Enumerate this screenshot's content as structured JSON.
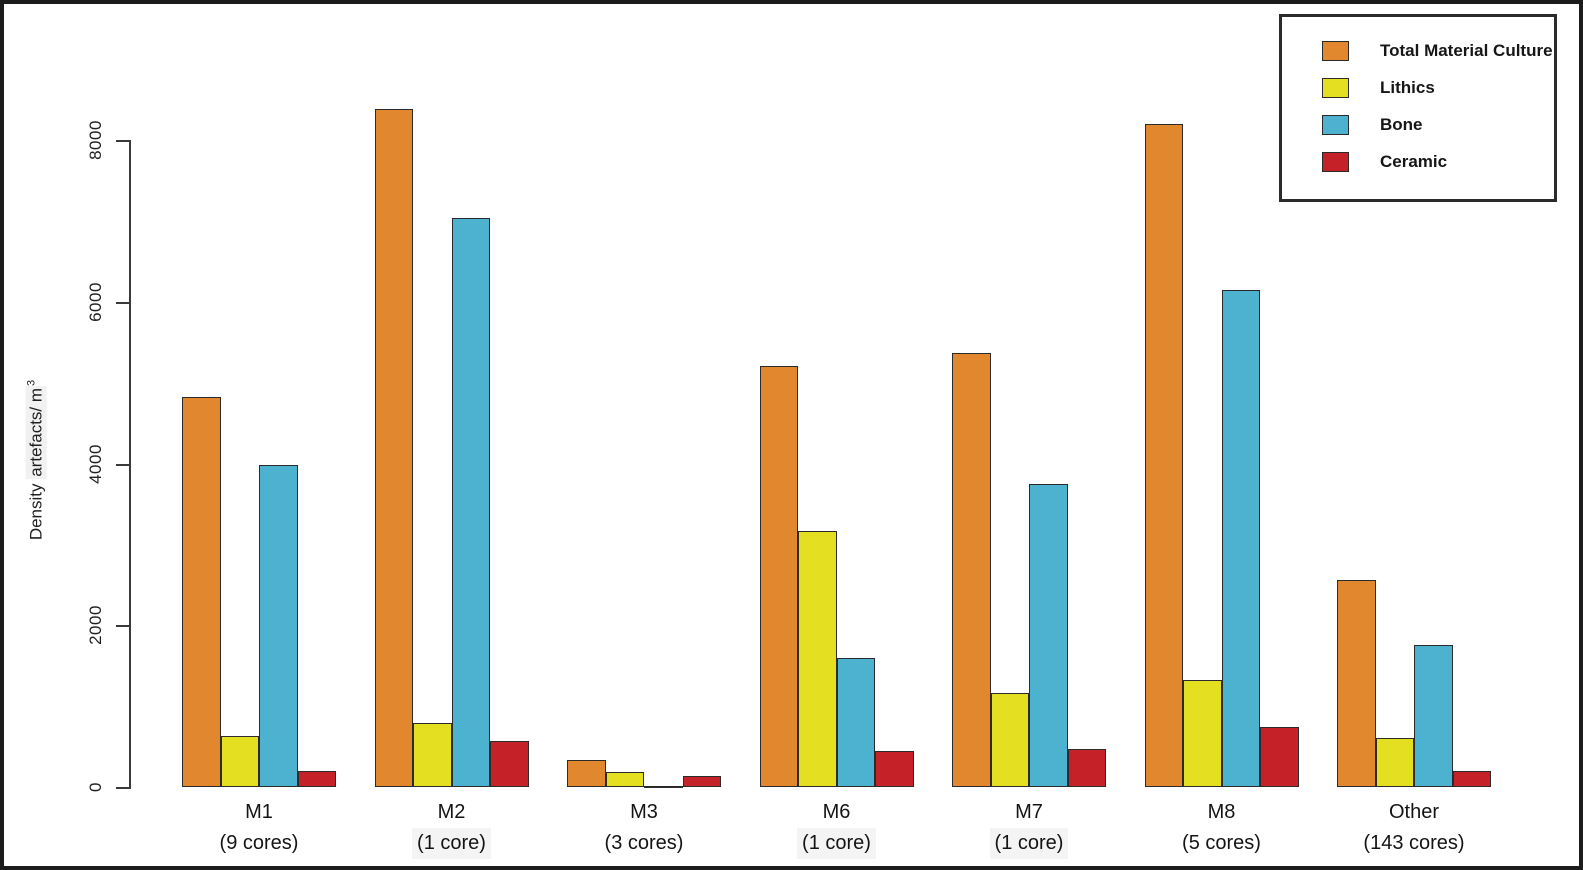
{
  "chart_data": {
    "type": "bar",
    "title": "",
    "ylabel_parts": {
      "prefix": "Density ",
      "highlight": "artefacts/ m",
      "superscript": "3"
    },
    "y_ticks": [
      0,
      2000,
      4000,
      6000,
      8000
    ],
    "ylim": [
      0,
      8600
    ],
    "grid": false,
    "legend_position": "top-right",
    "categories": [
      {
        "name": "M1",
        "sub": "(9 cores)",
        "sub_highlight": false
      },
      {
        "name": "M2",
        "sub": "(1 core)",
        "sub_highlight": true
      },
      {
        "name": "M3",
        "sub": "(3 cores)",
        "sub_highlight": false
      },
      {
        "name": "M6",
        "sub": "(1 core)",
        "sub_highlight": true
      },
      {
        "name": "M7",
        "sub": "(1 core)",
        "sub_highlight": true
      },
      {
        "name": "M8",
        "sub": "(5 cores)",
        "sub_highlight": false
      },
      {
        "name": "Other",
        "sub": "(143 cores)",
        "sub_highlight": false
      }
    ],
    "series": [
      {
        "name": "Total Material Culture",
        "color": "#E1882F",
        "values": [
          4820,
          8380,
          330,
          5200,
          5370,
          8200,
          2560
        ]
      },
      {
        "name": "Lithics",
        "color": "#E4DF20",
        "values": [
          630,
          795,
          190,
          3160,
          1160,
          1320,
          610
        ]
      },
      {
        "name": "Bone",
        "color": "#4DB2CF",
        "values": [
          3980,
          7040,
          10,
          1590,
          3750,
          6150,
          1750
        ]
      },
      {
        "name": "Ceramic",
        "color": "#C52128",
        "values": [
          195,
          570,
          140,
          450,
          475,
          740,
          195
        ]
      }
    ]
  }
}
